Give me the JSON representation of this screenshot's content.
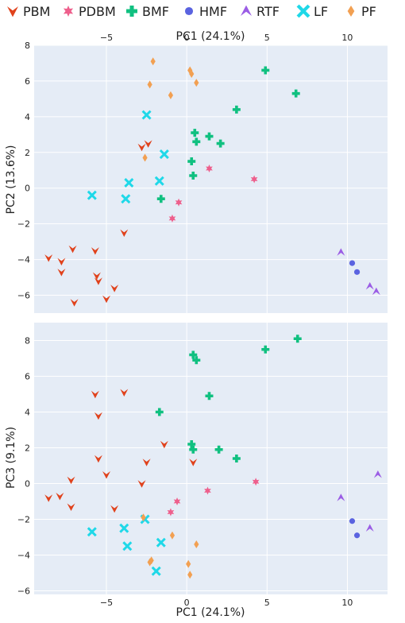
{
  "chart_data": [
    {
      "type": "scatter",
      "panel": "top",
      "x_axis": {
        "label": "PC1 (24.1%)",
        "range": [
          -9.5,
          12.5
        ],
        "ticks": [
          -5,
          0,
          5,
          10
        ],
        "position": "top"
      },
      "y_axis": {
        "label": "PC2 (13.6%)",
        "range": [
          -7,
          8
        ],
        "ticks": [
          -6,
          -4,
          -2,
          0,
          2,
          4,
          6,
          8
        ]
      },
      "grid": true,
      "series": [
        {
          "name": "PBM",
          "color": "#e0421c",
          "marker": "tri_down",
          "points": [
            [
              -8.6,
              -3.9
            ],
            [
              -7.8,
              -4.1
            ],
            [
              -7.8,
              -4.7
            ],
            [
              -7.1,
              -3.4
            ],
            [
              -7.0,
              -6.4
            ],
            [
              -5.7,
              -3.5
            ],
            [
              -5.6,
              -4.9
            ],
            [
              -5.5,
              -5.2
            ],
            [
              -5.0,
              -6.2
            ],
            [
              -4.5,
              -5.6
            ],
            [
              -3.9,
              -2.5
            ],
            [
              -2.8,
              2.3
            ],
            [
              -2.4,
              2.5
            ]
          ]
        },
        {
          "name": "PDBM",
          "color": "#ee5f8c",
          "marker": "star",
          "points": [
            [
              -0.9,
              -1.7
            ],
            [
              -0.5,
              -0.8
            ],
            [
              1.4,
              1.1
            ],
            [
              4.2,
              0.5
            ]
          ]
        },
        {
          "name": "BMF",
          "color": "#10c080",
          "marker": "plus",
          "points": [
            [
              -1.6,
              -0.6
            ],
            [
              0.3,
              1.5
            ],
            [
              0.4,
              0.7
            ],
            [
              0.5,
              3.1
            ],
            [
              0.6,
              2.6
            ],
            [
              1.4,
              2.9
            ],
            [
              2.1,
              2.5
            ],
            [
              3.1,
              4.4
            ],
            [
              4.9,
              6.6
            ],
            [
              6.8,
              5.3
            ]
          ]
        },
        {
          "name": "HMF",
          "color": "#5a63e0",
          "marker": "circle",
          "points": [
            [
              10.3,
              -4.2
            ],
            [
              10.6,
              -4.7
            ]
          ]
        },
        {
          "name": "RTF",
          "color": "#9b5de5",
          "marker": "tri_up",
          "points": [
            [
              9.6,
              -3.6
            ],
            [
              11.4,
              -5.5
            ],
            [
              11.8,
              -5.8
            ]
          ]
        },
        {
          "name": "LF",
          "color": "#1fd8e8",
          "marker": "x",
          "points": [
            [
              -5.9,
              -0.4
            ],
            [
              -3.8,
              -0.6
            ],
            [
              -3.6,
              0.3
            ],
            [
              -2.5,
              4.1
            ],
            [
              -1.7,
              0.4
            ],
            [
              -1.4,
              1.9
            ]
          ]
        },
        {
          "name": "PF",
          "color": "#f2a052",
          "marker": "diamond",
          "points": [
            [
              -2.6,
              1.7
            ],
            [
              -2.3,
              5.8
            ],
            [
              -2.1,
              7.1
            ],
            [
              -1.0,
              5.2
            ],
            [
              0.2,
              6.6
            ],
            [
              0.3,
              6.4
            ],
            [
              0.6,
              5.9
            ]
          ]
        }
      ]
    },
    {
      "type": "scatter",
      "panel": "bottom",
      "x_axis": {
        "label": "PC1 (24.1%)",
        "range": [
          -9.5,
          12.5
        ],
        "ticks": [
          -5,
          0,
          5,
          10
        ],
        "position": "bottom"
      },
      "y_axis": {
        "label": "PC3 (9.1%)",
        "range": [
          -6.2,
          9
        ],
        "ticks": [
          -6,
          -4,
          -2,
          0,
          2,
          4,
          6,
          8
        ]
      },
      "grid": true,
      "series": [
        {
          "name": "PBM",
          "color": "#e0421c",
          "marker": "tri_down",
          "points": [
            [
              -8.6,
              -0.8
            ],
            [
              -7.9,
              -0.7
            ],
            [
              -7.2,
              -1.3
            ],
            [
              -7.2,
              0.2
            ],
            [
              -5.7,
              5.0
            ],
            [
              -5.5,
              3.8
            ],
            [
              -5.5,
              1.4
            ],
            [
              -5.0,
              0.5
            ],
            [
              -4.5,
              -1.4
            ],
            [
              -3.9,
              5.1
            ],
            [
              -2.8,
              0.0
            ],
            [
              -2.5,
              1.2
            ],
            [
              -1.4,
              2.2
            ],
            [
              0.4,
              1.2
            ]
          ]
        },
        {
          "name": "PDBM",
          "color": "#ee5f8c",
          "marker": "star",
          "points": [
            [
              -1.0,
              -1.6
            ],
            [
              -0.6,
              -1.0
            ],
            [
              1.3,
              -0.4
            ],
            [
              4.3,
              0.1
            ]
          ]
        },
        {
          "name": "BMF",
          "color": "#10c080",
          "marker": "plus",
          "points": [
            [
              -1.7,
              4.0
            ],
            [
              0.3,
              2.2
            ],
            [
              0.4,
              1.9
            ],
            [
              0.4,
              7.2
            ],
            [
              0.6,
              6.9
            ],
            [
              1.4,
              4.9
            ],
            [
              2.0,
              1.9
            ],
            [
              3.1,
              1.4
            ],
            [
              4.9,
              7.5
            ],
            [
              6.9,
              8.1
            ]
          ]
        },
        {
          "name": "HMF",
          "color": "#5a63e0",
          "marker": "circle",
          "points": [
            [
              10.3,
              -2.1
            ],
            [
              10.6,
              -2.9
            ]
          ]
        },
        {
          "name": "RTF",
          "color": "#9b5de5",
          "marker": "tri_up",
          "points": [
            [
              9.6,
              -0.8
            ],
            [
              11.4,
              -2.5
            ],
            [
              11.9,
              0.5
            ]
          ]
        },
        {
          "name": "LF",
          "color": "#1fd8e8",
          "marker": "x",
          "points": [
            [
              -5.9,
              -2.7
            ],
            [
              -3.9,
              -2.5
            ],
            [
              -3.7,
              -3.5
            ],
            [
              -2.6,
              -2.0
            ],
            [
              -1.6,
              -3.3
            ],
            [
              -1.9,
              -4.9
            ]
          ]
        },
        {
          "name": "PF",
          "color": "#f2a052",
          "marker": "diamond",
          "points": [
            [
              -2.7,
              -1.9
            ],
            [
              -2.3,
              -4.4
            ],
            [
              -2.2,
              -4.3
            ],
            [
              -0.9,
              -2.9
            ],
            [
              0.1,
              -4.5
            ],
            [
              0.2,
              -5.1
            ],
            [
              0.6,
              -3.4
            ]
          ]
        }
      ]
    }
  ],
  "legend": {
    "placement": "top",
    "items": [
      {
        "label": "PBM",
        "color": "#e0421c",
        "marker": "tri_down"
      },
      {
        "label": "PDBM",
        "color": "#ee5f8c",
        "marker": "star"
      },
      {
        "label": "BMF",
        "color": "#10c080",
        "marker": "plus"
      },
      {
        "label": "HMF",
        "color": "#5a63e0",
        "marker": "circle"
      },
      {
        "label": "RTF",
        "color": "#9b5de5",
        "marker": "tri_up"
      },
      {
        "label": "LF",
        "color": "#1fd8e8",
        "marker": "x"
      },
      {
        "label": "PF",
        "color": "#f2a052",
        "marker": "diamond"
      }
    ]
  },
  "colors": {
    "panel_bg": "#e5ecf6",
    "grid": "#ffffff"
  }
}
